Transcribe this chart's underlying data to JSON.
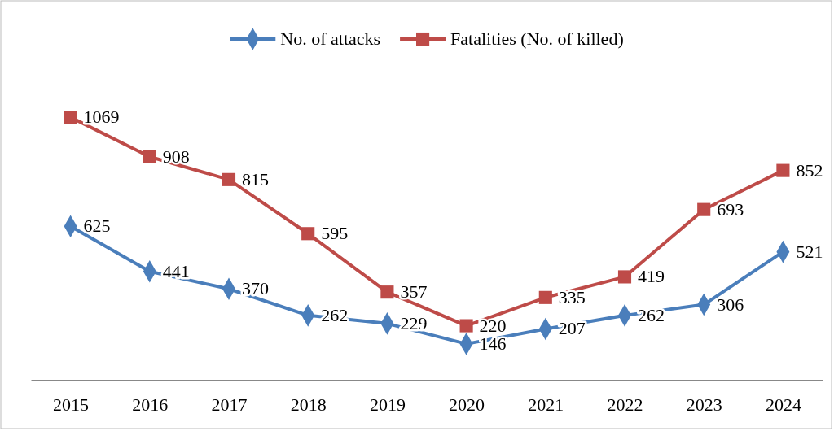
{
  "chart_data": {
    "type": "line",
    "categories": [
      "2015",
      "2016",
      "2017",
      "2018",
      "2019",
      "2020",
      "2021",
      "2022",
      "2023",
      "2024"
    ],
    "series": [
      {
        "name": "No. of attacks",
        "color": "#4a7ebb",
        "marker": "diamond",
        "values": [
          625,
          441,
          370,
          262,
          229,
          146,
          207,
          262,
          306,
          521
        ]
      },
      {
        "name": "Fatalities (No. of killed)",
        "color": "#be4b48",
        "marker": "square",
        "values": [
          1069,
          908,
          815,
          595,
          357,
          220,
          335,
          419,
          693,
          852
        ]
      }
    ],
    "tick_labels": "x",
    "data_labels": true,
    "legend": "top"
  }
}
